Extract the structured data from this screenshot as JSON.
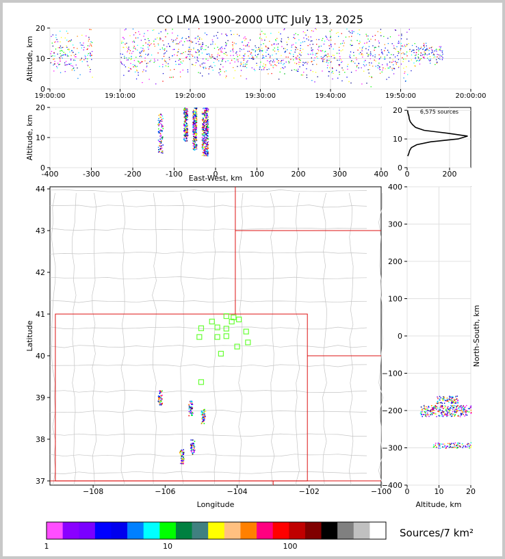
{
  "title": "CO LMA 1900-2000 UTC July 13, 2025",
  "sources_label": "6,575 sources",
  "colorbar": {
    "label": "Sources/7 km²",
    "ticks": [
      "1",
      "10",
      "100"
    ],
    "colors": [
      "#ff4dff",
      "#8a00ff",
      "#7a00ff",
      "#0000ff",
      "#0000ee",
      "#0080ff",
      "#00ffff",
      "#00ff00",
      "#008040",
      "#408080",
      "#ffff00",
      "#ffc080",
      "#ff8000",
      "#ff0080",
      "#ff0000",
      "#c00000",
      "#800000",
      "#000000",
      "#808080",
      "#c0c0c0",
      "#ffffff"
    ]
  },
  "chart_data": [
    {
      "id": "time-height",
      "type": "scatter",
      "xlabel": "",
      "ylabel": "Altitude, km",
      "x_ticks": [
        "19:00:00",
        "19:10:00",
        "19:20:00",
        "19:30:00",
        "19:40:00",
        "19:50:00",
        "20:00:00"
      ],
      "xlim_minutes": [
        0,
        60
      ],
      "ylim": [
        0,
        20
      ],
      "y_ticks": [
        0,
        10,
        20
      ],
      "clusters": [
        {
          "t": [
            0,
            6
          ],
          "alt": [
            7,
            18
          ]
        },
        {
          "t": [
            10,
            18
          ],
          "alt": [
            6,
            19
          ]
        },
        {
          "t": [
            18,
            24
          ],
          "alt": [
            6,
            19
          ]
        },
        {
          "t": [
            24,
            35
          ],
          "alt": [
            6,
            18
          ]
        },
        {
          "t": [
            35,
            52
          ],
          "alt": [
            5,
            19
          ]
        },
        {
          "t": [
            52,
            56
          ],
          "alt": [
            9,
            14
          ]
        }
      ]
    },
    {
      "id": "ew-height",
      "type": "scatter",
      "xlabel": "East-West, km",
      "ylabel": "Altitude, km",
      "xlim": [
        -400,
        400
      ],
      "x_ticks": [
        -400,
        -300,
        -200,
        -100,
        0,
        100,
        200,
        300,
        400
      ],
      "ylim": [
        0,
        20
      ],
      "y_ticks": [
        0,
        10,
        20
      ],
      "clusters": [
        {
          "x": [
            -140,
            -128
          ],
          "alt": [
            5,
            18
          ]
        },
        {
          "x": [
            -78,
            -68
          ],
          "alt": [
            9,
            20
          ]
        },
        {
          "x": [
            -56,
            -46
          ],
          "alt": [
            6,
            20
          ]
        },
        {
          "x": [
            -34,
            -18
          ],
          "alt": [
            4,
            20
          ]
        }
      ]
    },
    {
      "id": "alt-histogram",
      "type": "line",
      "xlabel": "",
      "ylabel": "",
      "xlim": [
        0,
        300
      ],
      "x_ticks": [
        0,
        200
      ],
      "ylim": [
        0,
        21
      ],
      "y_ticks": [
        0,
        10,
        20
      ],
      "alt": [
        4,
        5,
        6,
        7,
        8,
        9,
        10,
        11,
        12,
        13,
        14,
        15,
        16,
        17,
        18,
        19,
        20
      ],
      "count": [
        3,
        8,
        12,
        20,
        45,
        110,
        240,
        285,
        190,
        80,
        40,
        25,
        15,
        10,
        8,
        4,
        2
      ]
    },
    {
      "id": "plan-view",
      "type": "scatter",
      "xlabel": "Longitude",
      "ylabel": "Latitude",
      "xlim": [
        -109.2,
        -100.0
      ],
      "x_ticks": [
        -108,
        -106,
        -104,
        -102,
        -100
      ],
      "ylim": [
        36.9,
        44.05
      ],
      "y_ticks": [
        37,
        38,
        39,
        40,
        41,
        42,
        43,
        44
      ],
      "stations": [
        [
          -104.3,
          40.95
        ],
        [
          -104.1,
          40.92
        ],
        [
          -103.95,
          40.87
        ],
        [
          -104.15,
          40.82
        ],
        [
          -104.7,
          40.82
        ],
        [
          -104.55,
          40.68
        ],
        [
          -104.3,
          40.65
        ],
        [
          -105.0,
          40.66
        ],
        [
          -103.75,
          40.58
        ],
        [
          -104.3,
          40.47
        ],
        [
          -104.55,
          40.45
        ],
        [
          -105.05,
          40.45
        ],
        [
          -103.7,
          40.32
        ],
        [
          -104.0,
          40.22
        ],
        [
          -104.45,
          40.05
        ],
        [
          -105.0,
          39.37
        ]
      ],
      "clusters": [
        {
          "lon": -106.15,
          "lat": 39.0
        },
        {
          "lon": -105.3,
          "lat": 38.75
        },
        {
          "lon": -104.95,
          "lat": 38.55
        },
        {
          "lon": -105.25,
          "lat": 37.82
        },
        {
          "lon": -105.55,
          "lat": 37.6
        }
      ]
    },
    {
      "id": "ns-height",
      "type": "scatter",
      "xlabel": "Altitude, km",
      "ylabel": "North-South, km",
      "xlim": [
        0,
        20
      ],
      "x_ticks": [
        0,
        10,
        20
      ],
      "ylim": [
        -400,
        400
      ],
      "y_ticks": [
        -400,
        -300,
        -200,
        -100,
        0,
        100,
        200,
        300,
        400
      ],
      "clusters": [
        {
          "alt": [
            4,
            20
          ],
          "ns": [
            -215,
            -185
          ]
        },
        {
          "alt": [
            9,
            16
          ],
          "ns": [
            -180,
            -160
          ]
        },
        {
          "alt": [
            8,
            20
          ],
          "ns": [
            -300,
            -285
          ]
        }
      ]
    }
  ]
}
